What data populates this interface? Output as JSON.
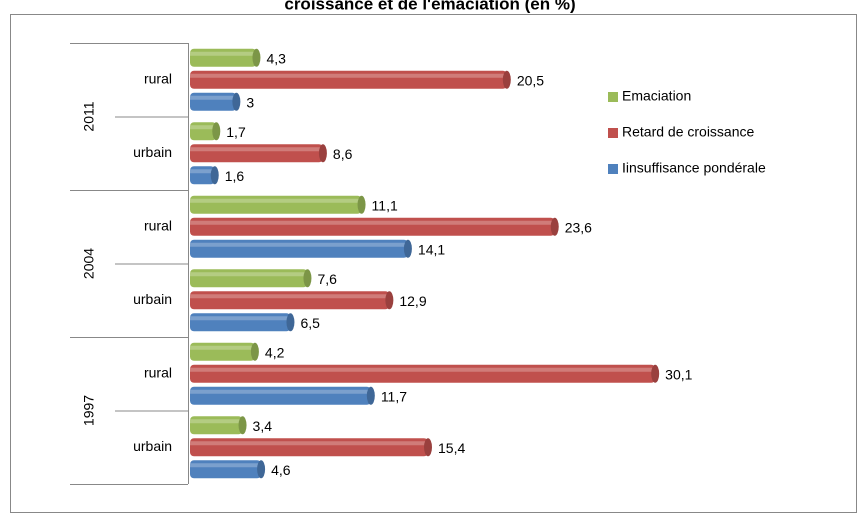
{
  "chart_data": {
    "type": "bar",
    "orientation": "horizontal",
    "style": "cylinder",
    "title": "croissance et de l'émaciation (en %)",
    "groups": [
      {
        "name": "2011",
        "categories": [
          "rural",
          "urbain"
        ]
      },
      {
        "name": "2004",
        "categories": [
          "rural",
          "urbain"
        ]
      },
      {
        "name": "1997",
        "categories": [
          "rural",
          "urbain"
        ]
      }
    ],
    "xlim": [
      0,
      33
    ],
    "legend": "right",
    "series": [
      {
        "name": "Emaciation",
        "color": "#9bbb59",
        "values": [
          4.3,
          1.7,
          11.1,
          7.6,
          4.2,
          3.4
        ],
        "value_labels": [
          "4,3",
          "1,7",
          "11,1",
          "7,6",
          "4,2",
          "3,4"
        ]
      },
      {
        "name": "Retard de croissance",
        "color": "#c0504d",
        "values": [
          20.5,
          8.6,
          23.6,
          12.9,
          30.1,
          15.4
        ],
        "value_labels": [
          "20,5",
          "8,6",
          "23,6",
          "12,9",
          "30,1",
          "15,4"
        ]
      },
      {
        "name": "Iinsuffisance pondérale",
        "color": "#4f81bd",
        "values": [
          3,
          1.6,
          14.1,
          6.5,
          11.7,
          4.6
        ],
        "value_labels": [
          "3",
          "1,6",
          "14,1",
          "6,5",
          "11,7",
          "4,6"
        ]
      }
    ]
  }
}
